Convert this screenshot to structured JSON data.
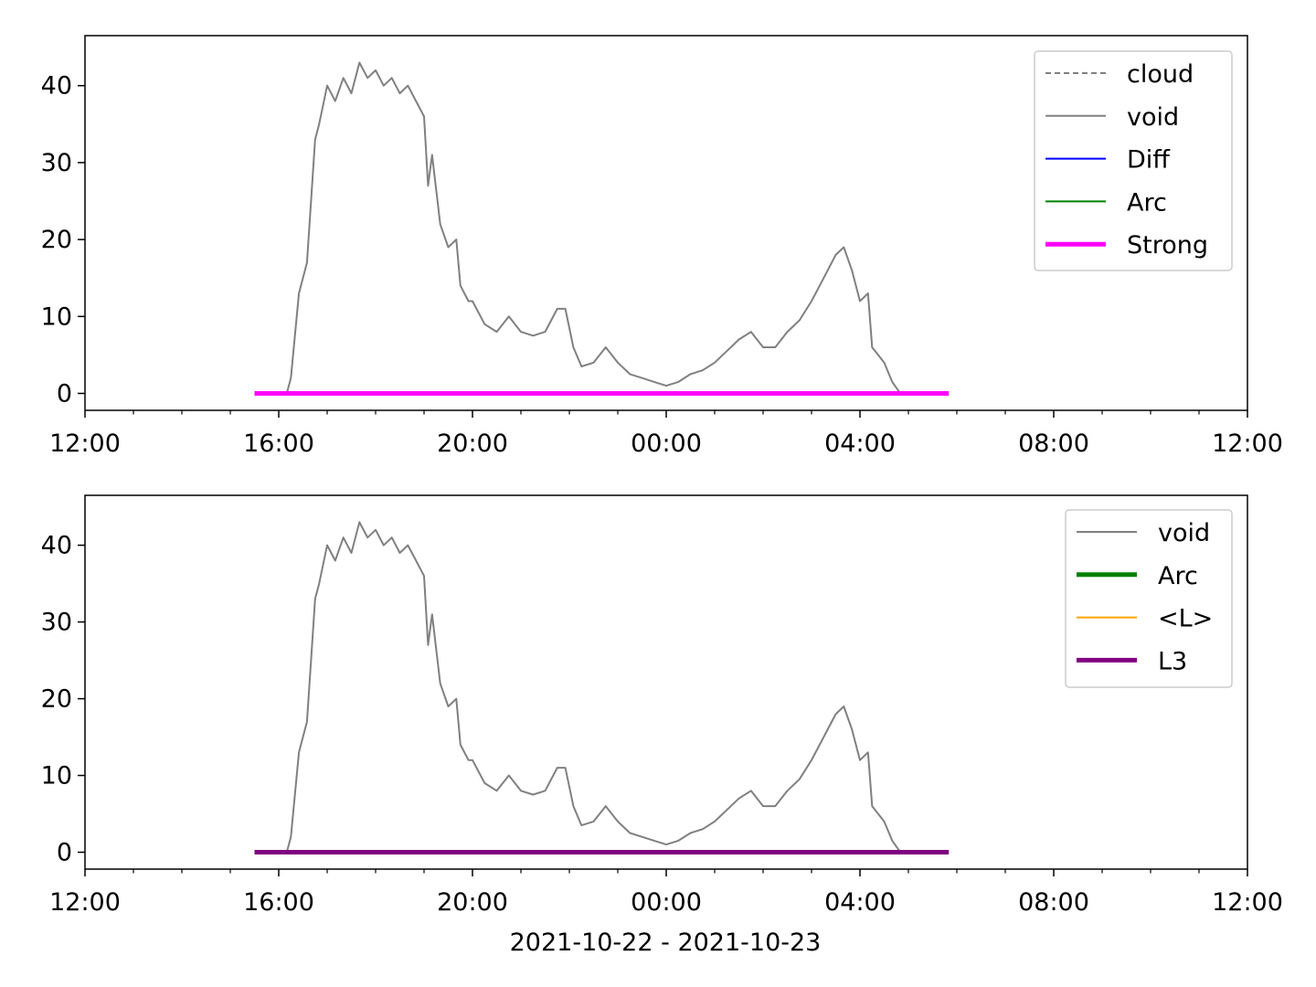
{
  "chart_data": [
    {
      "type": "line",
      "xlim": [
        "12:00",
        "12:00"
      ],
      "ylim": [
        -2.2,
        46.5
      ],
      "xticks": [
        "12:00",
        "16:00",
        "20:00",
        "00:00",
        "04:00",
        "08:00",
        "12:00"
      ],
      "yticks": [
        0,
        10,
        20,
        30,
        40
      ],
      "legend_position": "upper-right",
      "grid": false,
      "series": [
        {
          "name": "cloud",
          "color": "#808080",
          "style": "dashed",
          "points": []
        },
        {
          "name": "void",
          "color": "#808080",
          "style": "solid",
          "points": [
            [
              "16:10",
              0
            ],
            [
              "16:15",
              2
            ],
            [
              "16:25",
              13
            ],
            [
              "16:35",
              17
            ],
            [
              "16:45",
              33
            ],
            [
              "16:50",
              35
            ],
            [
              "17:00",
              40
            ],
            [
              "17:10",
              38
            ],
            [
              "17:20",
              41
            ],
            [
              "17:30",
              39
            ],
            [
              "17:40",
              43
            ],
            [
              "17:50",
              41
            ],
            [
              "18:00",
              42
            ],
            [
              "18:10",
              40
            ],
            [
              "18:20",
              41
            ],
            [
              "18:30",
              39
            ],
            [
              "18:40",
              40
            ],
            [
              "18:50",
              38
            ],
            [
              "19:00",
              36
            ],
            [
              "19:05",
              27
            ],
            [
              "19:10",
              31
            ],
            [
              "19:20",
              22
            ],
            [
              "19:30",
              19
            ],
            [
              "19:40",
              20
            ],
            [
              "19:45",
              14
            ],
            [
              "19:55",
              12
            ],
            [
              "20:00",
              12
            ],
            [
              "20:15",
              9
            ],
            [
              "20:30",
              8
            ],
            [
              "20:45",
              10
            ],
            [
              "21:00",
              8
            ],
            [
              "21:15",
              7.5
            ],
            [
              "21:30",
              8
            ],
            [
              "21:45",
              11
            ],
            [
              "21:55",
              11
            ],
            [
              "22:05",
              6
            ],
            [
              "22:15",
              3.5
            ],
            [
              "22:30",
              4
            ],
            [
              "22:45",
              6
            ],
            [
              "23:00",
              4
            ],
            [
              "23:15",
              2.5
            ],
            [
              "23:30",
              2
            ],
            [
              "23:45",
              1.5
            ],
            [
              "00:00",
              1
            ],
            [
              "00:15",
              1.5
            ],
            [
              "00:30",
              2.5
            ],
            [
              "00:45",
              3
            ],
            [
              "01:00",
              4
            ],
            [
              "01:15",
              5.5
            ],
            [
              "01:30",
              7
            ],
            [
              "01:45",
              8
            ],
            [
              "02:00",
              6
            ],
            [
              "02:15",
              6
            ],
            [
              "02:30",
              8
            ],
            [
              "02:45",
              9.5
            ],
            [
              "03:00",
              12
            ],
            [
              "03:15",
              15
            ],
            [
              "03:30",
              18
            ],
            [
              "03:40",
              19
            ],
            [
              "03:50",
              16
            ],
            [
              "04:00",
              12
            ],
            [
              "04:10",
              13
            ],
            [
              "04:15",
              6
            ],
            [
              "04:30",
              4
            ],
            [
              "04:40",
              1.5
            ],
            [
              "04:50",
              0
            ]
          ]
        },
        {
          "name": "Diff",
          "color": "#0000ff",
          "style": "solid",
          "points": []
        },
        {
          "name": "Arc",
          "color": "#008000",
          "style": "solid",
          "points": []
        },
        {
          "name": "Strong",
          "color": "#ff00ff",
          "style": "solid-thick",
          "points": [
            [
              "15:30",
              0
            ],
            [
              "05:50",
              0
            ]
          ]
        }
      ]
    },
    {
      "type": "line",
      "xlim": [
        "12:00",
        "12:00"
      ],
      "ylim": [
        -2.2,
        46.5
      ],
      "xticks": [
        "12:00",
        "16:00",
        "20:00",
        "00:00",
        "04:00",
        "08:00",
        "12:00"
      ],
      "yticks": [
        0,
        10,
        20,
        30,
        40
      ],
      "xlabel": "2021-10-22 - 2021-10-23",
      "legend_position": "upper-right",
      "grid": false,
      "series": [
        {
          "name": "void",
          "color": "#808080",
          "style": "solid",
          "points": "same-as-upper-void"
        },
        {
          "name": "Arc",
          "color": "#008000",
          "style": "solid-thick",
          "points": []
        },
        {
          "name": "<L>",
          "color": "#ffa500",
          "style": "solid",
          "points": []
        },
        {
          "name": "L3",
          "color": "#800080",
          "style": "solid-thick",
          "points": [
            [
              "15:30",
              0
            ],
            [
              "05:50",
              0
            ]
          ]
        }
      ]
    }
  ]
}
